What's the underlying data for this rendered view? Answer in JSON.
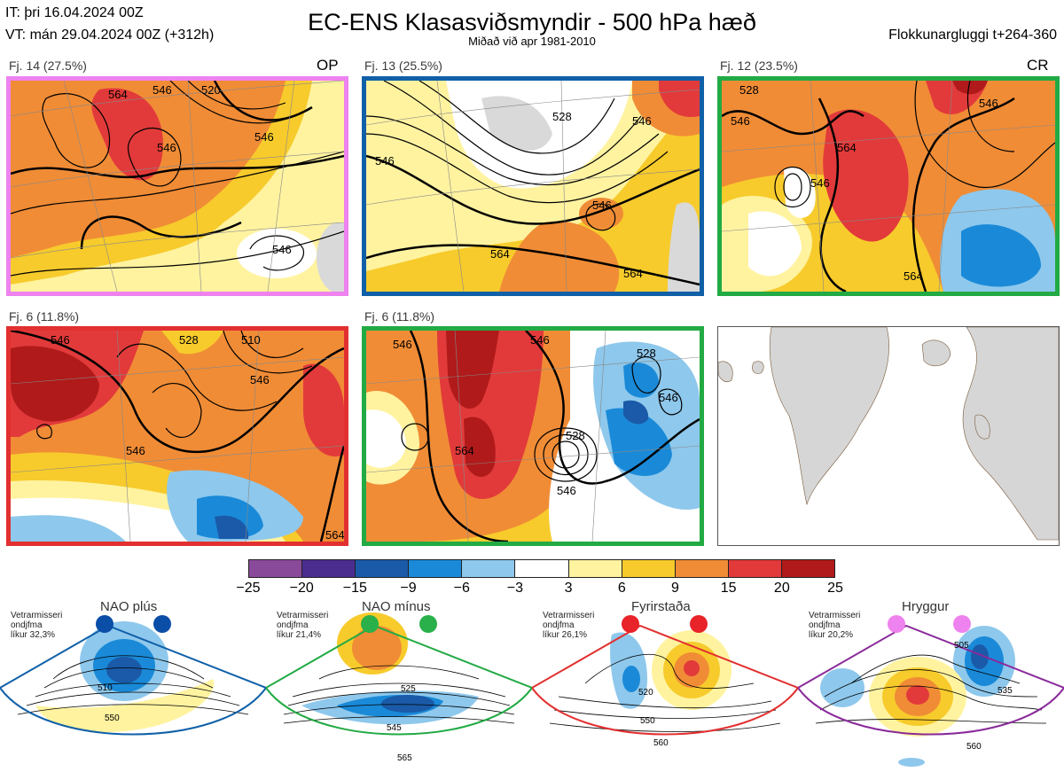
{
  "header": {
    "it": "IT: þri 16.04.2024 00Z",
    "vt": "VT: mán 29.04.2024 00Z  (+312h)",
    "title": "EC-ENS Klasasviðsmyndir - 500 hPa hæð",
    "subtitle": "Miðað við apr 1981-2010",
    "window": "Flokkunargluggi t+264-360"
  },
  "clusters": [
    {
      "label": "Fj. 14 (27.5%)",
      "tag": "OP",
      "border": "#ee82ee"
    },
    {
      "label": "Fj. 13 (25.5%)",
      "tag": "",
      "border": "#1060a8"
    },
    {
      "label": "Fj. 12 (23.5%)",
      "tag": "CR",
      "border": "#22aa44"
    },
    {
      "label": "Fj. 6 (11.8%)",
      "tag": "",
      "border": "#e23030"
    },
    {
      "label": "Fj. 6 (11.8%)",
      "tag": "",
      "border": "#22aa44"
    }
  ],
  "contour_labels": {
    "p1": [
      "564",
      "546",
      "520",
      "546",
      "546",
      "546"
    ],
    "p2": [
      "546",
      "528",
      "546",
      "546",
      "564",
      "564"
    ],
    "p3": [
      "528",
      "546",
      "546",
      "564",
      "564",
      "546"
    ],
    "p4": [
      "546",
      "528",
      "510",
      "546",
      "546",
      "564"
    ],
    "p5": [
      "546",
      "546",
      "528",
      "564",
      "528",
      "546",
      "546"
    ]
  },
  "colorbar": {
    "ticks": [
      "−25",
      "−20",
      "−15",
      "−9",
      "−6",
      "−3",
      "3",
      "6",
      "9",
      "15",
      "20",
      "25"
    ],
    "colors": [
      "#8a4a9a",
      "#4a2d8f",
      "#1a5aa8",
      "#1a8ad8",
      "#8ec8ec",
      "#ffffff",
      "#fff3a0",
      "#f7cb2c",
      "#f08c36",
      "#e23a3a",
      "#b01a1a"
    ]
  },
  "regimes": [
    {
      "name": "NAO plús",
      "line1": "Vetrarmisseri",
      "line2": "ondjfma",
      "line3": "líkur 32,3%",
      "border": "#1060a8",
      "dot": "#0a4ea8",
      "contours": [
        "510",
        "550"
      ]
    },
    {
      "name": "NAO mínus",
      "line1": "Vetrarmisseri",
      "line2": "ondjfma",
      "line3": "líkur 21,4%",
      "border": "#22aa44",
      "dot": "#2ab04a",
      "contours": [
        "525",
        "545",
        "565"
      ]
    },
    {
      "name": "Fyrirstaða",
      "line1": "Vetrarmisseri",
      "line2": "ondjfma",
      "line3": "líkur 26,1%",
      "border": "#e23030",
      "dot": "#e8232a",
      "contours": [
        "520",
        "550",
        "560"
      ]
    },
    {
      "name": "Hryggur",
      "line1": "Vetrarmisseri",
      "line2": "ondjfma",
      "line3": "líkur 20,2%",
      "border": "#8a2a9a",
      "dot": "#ee82ee",
      "contours": [
        "505",
        "535",
        "560"
      ]
    }
  ]
}
